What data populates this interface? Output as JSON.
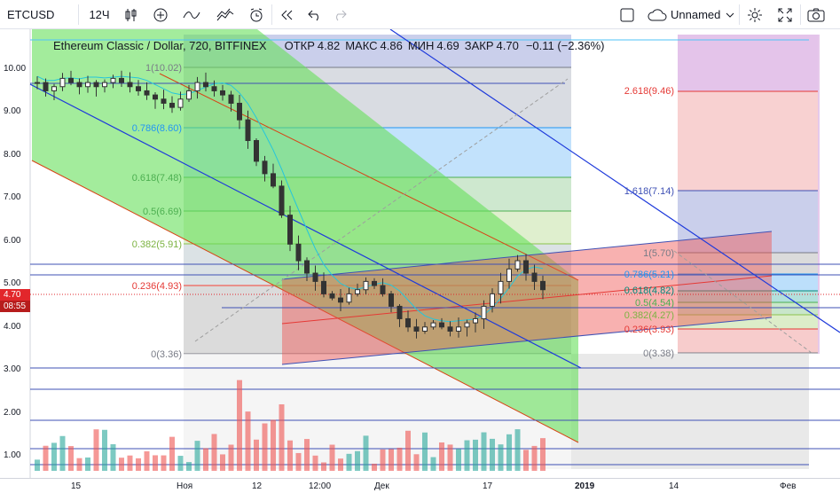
{
  "toolbar": {
    "symbol": "ETCUSD",
    "interval": "12Ч",
    "layout_name": "Unnamed"
  },
  "legend": {
    "title": "Ethereum Classic / Dollar, 720, BITFINEX",
    "open_label": "ОТКР",
    "open": "4.82",
    "high_label": "МАКС",
    "high": "4.86",
    "low_label": "МИН",
    "low": "4.69",
    "close_label": "ЗАКР",
    "close": "4.70",
    "change": "−0.11 (−2.36%)"
  },
  "price_axis": {
    "ticks": [
      "10.00",
      "9.00",
      "8.00",
      "7.00",
      "6.00",
      "5.00",
      "4.00",
      "3.00",
      "2.00",
      "1.00"
    ],
    "current_price": "4.70",
    "countdown": "08:55"
  },
  "time_axis": {
    "ticks": [
      "15",
      "Ноя",
      "12",
      "12:00",
      "Дек",
      "17",
      "2019",
      "14",
      "Фев"
    ]
  },
  "fib_left": {
    "levels": [
      "1(10.02)",
      "0.786(8.60)",
      "0.618(7.48)",
      "0.5(6.69)",
      "0.382(5.91)",
      "0.236(4.93)",
      "0(3.36)"
    ]
  },
  "fib_right": {
    "levels": [
      "2.618(9.46)",
      "1.618(7.14)",
      "1(5.70)",
      "0.786(5.21)",
      "0.618(4.82)",
      "0.5(4.54)",
      "0.382(4.27)",
      "0.236(3.93)",
      "0(3.38)"
    ]
  },
  "chart_data": {
    "type": "candlestick",
    "symbol": "ETCUSD",
    "exchange": "BITFINEX",
    "interval_minutes": 720,
    "ylim": [
      0.5,
      10.9
    ],
    "close_path": [
      9.7,
      9.5,
      9.6,
      9.8,
      9.7,
      9.6,
      9.7,
      9.6,
      9.7,
      9.8,
      9.7,
      9.6,
      9.5,
      9.4,
      9.3,
      9.2,
      9.1,
      9.3,
      9.5,
      9.7,
      9.6,
      9.5,
      9.4,
      9.2,
      8.8,
      8.3,
      7.8,
      7.5,
      7.2,
      6.5,
      5.8,
      5.4,
      5.1,
      4.9,
      4.6,
      4.5,
      4.4,
      4.6,
      4.7,
      4.9,
      4.8,
      4.6,
      4.3,
      4.0,
      3.8,
      3.7,
      3.8,
      3.9,
      3.8,
      3.7,
      3.8,
      3.9,
      4.0,
      4.3,
      4.6,
      4.9,
      5.2,
      5.4,
      5.1,
      4.9,
      4.7
    ],
    "colors": {
      "up": "#26a69a",
      "down": "#ef5350"
    }
  }
}
